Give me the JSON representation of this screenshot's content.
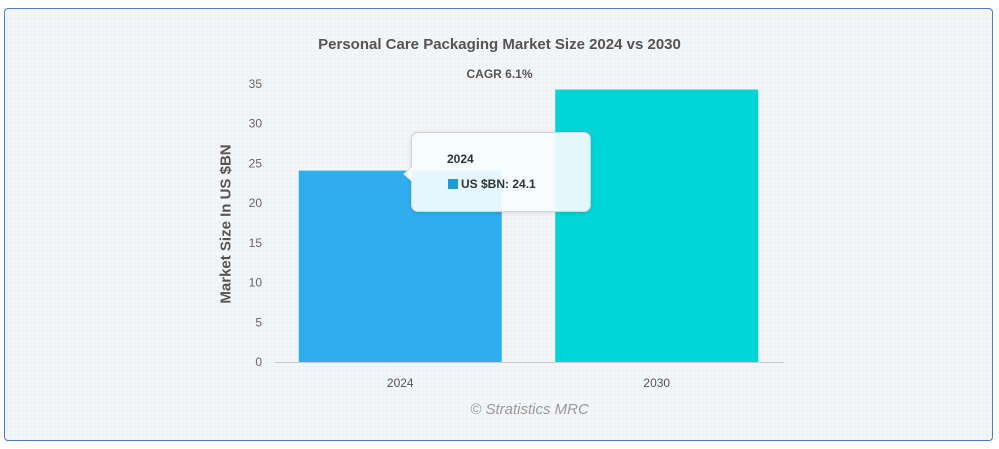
{
  "chart_data": {
    "type": "bar",
    "title": "Personal Care Packaging Market Size 2024 vs 2030",
    "subtitle": "CAGR 6.1%",
    "xlabel": "",
    "ylabel": "Market Size In US $BN",
    "categories": [
      "2024",
      "2030"
    ],
    "series": [
      {
        "name": "US $BN",
        "values": [
          24.1,
          34.3
        ]
      }
    ],
    "colors": [
      "#2eaeed",
      "#00d4d4"
    ],
    "ylim": [
      0,
      35
    ],
    "yticks": [
      0,
      5,
      10,
      15,
      20,
      25,
      30,
      35
    ],
    "grid": false,
    "legend": "none",
    "tooltip": {
      "title": "2024",
      "label": "US $BN: 24.1",
      "color": "#1e9ad6"
    }
  },
  "credit": "© Stratistics MRC"
}
